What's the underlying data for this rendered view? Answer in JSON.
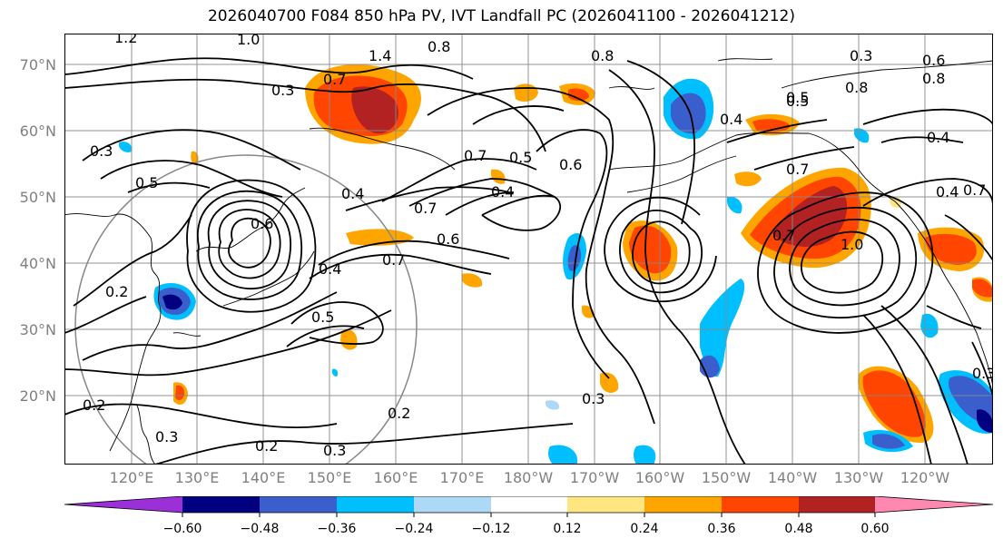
{
  "title": "2026040700 F084 850 hPa PV, IVT Landfall PC (2026041100 - 2026041212)",
  "lat_labels": [
    "70°N",
    "60°N",
    "50°N",
    "40°N",
    "30°N",
    "20°N"
  ],
  "lon_labels": [
    "120°E",
    "130°E",
    "140°E",
    "150°E",
    "160°E",
    "170°E",
    "180°W",
    "170°W",
    "160°W",
    "150°W",
    "140°W",
    "130°W",
    "120°W"
  ],
  "colorbar": {
    "ticks": [
      "−0.60",
      "−0.48",
      "−0.36",
      "−0.24",
      "−0.12",
      "0.12",
      "0.24",
      "0.36",
      "0.48",
      "0.60"
    ],
    "colors": [
      "#9b30d9",
      "#000080",
      "#3a5fcd",
      "#00bfff",
      "#add8f6",
      "#ffffff",
      "#ffe680",
      "#ffa500",
      "#ff4500",
      "#b22222",
      "#ff88b0"
    ]
  },
  "contour_labels": [
    "1.2",
    "1.0",
    "1.4",
    "0.8",
    "0.8",
    "0.3",
    "0.7",
    "0.3",
    "0.5",
    "0.5",
    "0.4",
    "0.7",
    "0.5",
    "0.4",
    "0.6",
    "0.6",
    "0.4",
    "0.7",
    "0.6",
    "0.4",
    "0.7",
    "0.2",
    "0.5",
    "0.2",
    "0.3",
    "0.2",
    "0.3",
    "0.2",
    "0.3",
    "0.3",
    "0.8",
    "0.5",
    "0.4",
    "0.7",
    "0.7",
    "1.0",
    "0.8",
    "0.6",
    "0.4",
    "0.7",
    "0.3"
  ]
}
